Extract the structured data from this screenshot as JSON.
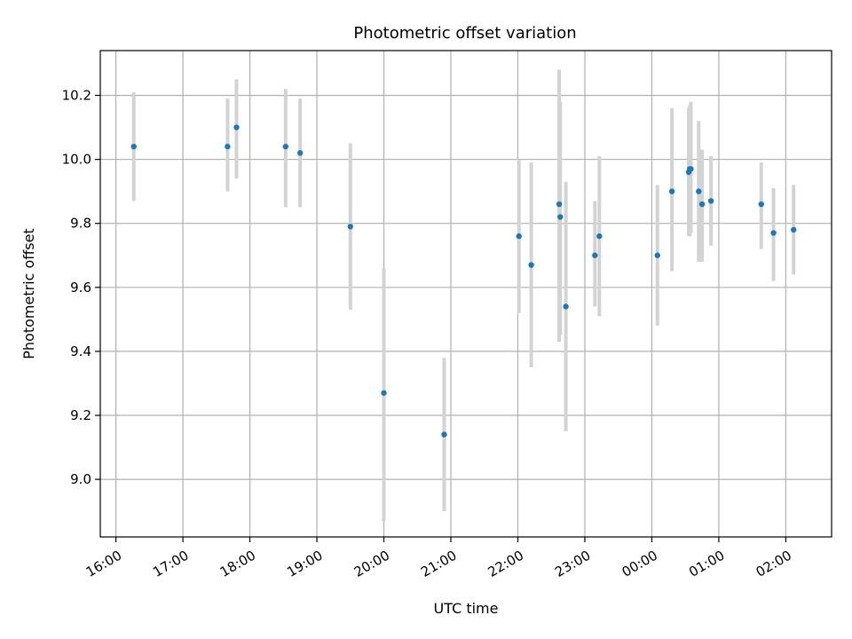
{
  "chart_data": {
    "type": "scatter",
    "title": "Photometric offset variation",
    "xlabel": "UTC time",
    "ylabel": "Photometric offset",
    "grid": true,
    "xlim": [
      "2024-01-01T15:46",
      "2024-01-02T02:41"
    ],
    "ylim": [
      8.82,
      10.34
    ],
    "x_ticks": [
      {
        "value": "2024-01-01T16:00",
        "label": "16:00"
      },
      {
        "value": "2024-01-01T17:00",
        "label": "17:00"
      },
      {
        "value": "2024-01-01T18:00",
        "label": "18:00"
      },
      {
        "value": "2024-01-01T19:00",
        "label": "19:00"
      },
      {
        "value": "2024-01-01T20:00",
        "label": "20:00"
      },
      {
        "value": "2024-01-01T21:00",
        "label": "21:00"
      },
      {
        "value": "2024-01-01T22:00",
        "label": "22:00"
      },
      {
        "value": "2024-01-01T23:00",
        "label": "23:00"
      },
      {
        "value": "2024-01-02T00:00",
        "label": "00:00"
      },
      {
        "value": "2024-01-02T01:00",
        "label": "01:00"
      },
      {
        "value": "2024-01-02T02:00",
        "label": "02:00"
      }
    ],
    "y_ticks": [
      {
        "value": 9.0,
        "label": "9.0"
      },
      {
        "value": 9.2,
        "label": "9.2"
      },
      {
        "value": 9.4,
        "label": "9.4"
      },
      {
        "value": 9.6,
        "label": "9.6"
      },
      {
        "value": 9.8,
        "label": "9.8"
      },
      {
        "value": 10.0,
        "label": "10.0"
      },
      {
        "value": 10.2,
        "label": "10.2"
      }
    ],
    "colors": {
      "point": "#1f77b4",
      "error_bar": "#d3d3d3",
      "grid": "#b0b0b0"
    },
    "points": [
      {
        "x": "2024-01-01T16:16",
        "y": 10.04,
        "lo": 9.87,
        "hi": 10.21
      },
      {
        "x": "2024-01-01T17:40",
        "y": 10.04,
        "lo": 9.9,
        "hi": 10.19
      },
      {
        "x": "2024-01-01T17:48",
        "y": 10.1,
        "lo": 9.94,
        "hi": 10.25
      },
      {
        "x": "2024-01-01T18:32",
        "y": 10.04,
        "lo": 9.85,
        "hi": 10.22
      },
      {
        "x": "2024-01-01T18:45",
        "y": 10.02,
        "lo": 9.85,
        "hi": 10.19
      },
      {
        "x": "2024-01-01T19:30",
        "y": 9.79,
        "lo": 9.53,
        "hi": 10.05
      },
      {
        "x": "2024-01-01T20:00",
        "y": 9.27,
        "lo": 8.87,
        "hi": 9.66
      },
      {
        "x": "2024-01-01T20:54",
        "y": 9.14,
        "lo": 8.9,
        "hi": 9.38
      },
      {
        "x": "2024-01-01T22:01",
        "y": 9.76,
        "lo": 9.52,
        "hi": 10.0
      },
      {
        "x": "2024-01-01T22:12",
        "y": 9.67,
        "lo": 9.35,
        "hi": 9.99
      },
      {
        "x": "2024-01-01T22:37",
        "y": 9.86,
        "lo": 9.43,
        "hi": 10.28
      },
      {
        "x": "2024-01-01T22:38",
        "y": 9.82,
        "lo": 9.45,
        "hi": 10.18
      },
      {
        "x": "2024-01-01T22:43",
        "y": 9.54,
        "lo": 9.15,
        "hi": 9.93
      },
      {
        "x": "2024-01-01T23:09",
        "y": 9.7,
        "lo": 9.54,
        "hi": 9.87
      },
      {
        "x": "2024-01-01T23:13",
        "y": 9.76,
        "lo": 9.51,
        "hi": 10.01
      },
      {
        "x": "2024-01-02T00:05",
        "y": 9.7,
        "lo": 9.48,
        "hi": 9.92
      },
      {
        "x": "2024-01-02T00:18",
        "y": 9.9,
        "lo": 9.65,
        "hi": 10.16
      },
      {
        "x": "2024-01-02T00:33",
        "y": 9.96,
        "lo": 9.76,
        "hi": 10.16
      },
      {
        "x": "2024-01-02T00:34",
        "y": 9.97,
        "lo": 9.76,
        "hi": 10.17
      },
      {
        "x": "2024-01-02T00:35",
        "y": 9.97,
        "lo": 9.77,
        "hi": 10.18
      },
      {
        "x": "2024-01-02T00:42",
        "y": 9.9,
        "lo": 9.68,
        "hi": 10.12
      },
      {
        "x": "2024-01-02T00:45",
        "y": 9.86,
        "lo": 9.68,
        "hi": 10.03
      },
      {
        "x": "2024-01-02T00:53",
        "y": 9.87,
        "lo": 9.73,
        "hi": 10.01
      },
      {
        "x": "2024-01-02T01:38",
        "y": 9.86,
        "lo": 9.72,
        "hi": 9.99
      },
      {
        "x": "2024-01-02T01:49",
        "y": 9.77,
        "lo": 9.62,
        "hi": 9.91
      },
      {
        "x": "2024-01-02T02:07",
        "y": 9.78,
        "lo": 9.64,
        "hi": 9.92
      }
    ]
  }
}
